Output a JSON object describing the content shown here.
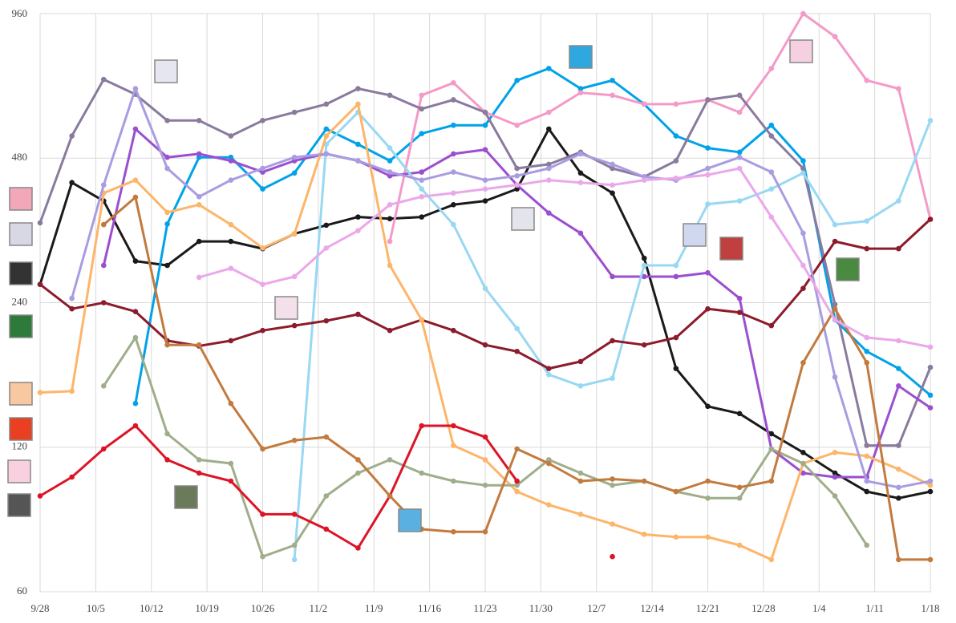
{
  "chart_data": {
    "type": "line",
    "yscale": "log",
    "grid": true,
    "xlim": [
      0,
      112
    ],
    "ylim": [
      60,
      960
    ],
    "xticks": [
      {
        "value": 0,
        "label": "9/28"
      },
      {
        "value": 7,
        "label": "10/5"
      },
      {
        "value": 14,
        "label": "10/12"
      },
      {
        "value": 21,
        "label": "10/19"
      },
      {
        "value": 28,
        "label": "10/26"
      },
      {
        "value": 35,
        "label": "11/2"
      },
      {
        "value": 42,
        "label": "11/9"
      },
      {
        "value": 49,
        "label": "11/16"
      },
      {
        "value": 56,
        "label": "11/23"
      },
      {
        "value": 63,
        "label": "11/30"
      },
      {
        "value": 70,
        "label": "12/7"
      },
      {
        "value": 77,
        "label": "12/14"
      },
      {
        "value": 84,
        "label": "12/21"
      },
      {
        "value": 91,
        "label": "12/28"
      },
      {
        "value": 98,
        "label": "1/4"
      },
      {
        "value": 105,
        "label": "1/11"
      },
      {
        "value": 112,
        "label": "1/18"
      }
    ],
    "yticks": [
      60,
      120,
      240,
      480,
      960
    ],
    "x": [
      0,
      4,
      8,
      12,
      16,
      20,
      24,
      28,
      32,
      36,
      40,
      44,
      48,
      52,
      56,
      60,
      64,
      68,
      72,
      76,
      80,
      84,
      88,
      92,
      96,
      100,
      104,
      108,
      112
    ],
    "series": [
      {
        "color": "#1a1a1a",
        "values": [
          262,
          427,
          391,
          293,
          287,
          322,
          322,
          311,
          334,
          348,
          362,
          359,
          362,
          384,
          391,
          414,
          552,
          447,
          406,
          297,
          175,
          146,
          141,
          128,
          117,
          106,
          97,
          94,
          97
        ]
      },
      {
        "color": "#00a2e8",
        "values": [
          null,
          null,
          null,
          148,
          350,
          482,
          482,
          414,
          447,
          552,
          513,
          474,
          540,
          562,
          562,
          697,
          738,
          670,
          697,
          622,
          534,
          504,
          494,
          562,
          474,
          221,
          190,
          175,
          154
        ]
      },
      {
        "color": "#f49ac8",
        "values": [
          null,
          null,
          null,
          null,
          null,
          null,
          null,
          null,
          null,
          null,
          null,
          322,
          649,
          689,
          598,
          562,
          598,
          657,
          649,
          622,
          622,
          635,
          598,
          738,
          960,
          860,
          697,
          670,
          358
        ]
      },
      {
        "color": "#8a7a9e",
        "values": [
          352,
          534,
          700,
          652,
          575,
          575,
          534,
          575,
          598,
          622,
          670,
          649,
          608,
          635,
          598,
          457,
          466,
          494,
          457,
          439,
          474,
          635,
          649,
          534,
          457,
          238,
          121,
          121,
          176
        ]
      },
      {
        "color": "#9b4fd0",
        "values": [
          null,
          null,
          287,
          552,
          482,
          490,
          474,
          449,
          474,
          490,
          474,
          441,
          449,
          490,
          500,
          422,
          369,
          335,
          272,
          272,
          272,
          277,
          245,
          119,
          106,
          104,
          104,
          161,
          145
        ]
      },
      {
        "color": "#99d8f2",
        "values": [
          null,
          null,
          null,
          null,
          null,
          null,
          null,
          null,
          70,
          513,
          598,
          504,
          414,
          349,
          257,
          212,
          170,
          161,
          167,
          287,
          287,
          385,
          391,
          414,
          447,
          349,
          355,
          391,
          575
        ]
      },
      {
        "color": "#8c1c2c",
        "values": [
          262,
          233,
          240,
          230,
          200,
          195,
          200,
          210,
          215,
          220,
          227,
          210,
          221,
          210,
          196,
          190,
          175,
          181,
          200,
          196,
          203,
          233,
          229,
          215,
          257,
          322,
          311,
          311,
          358
        ]
      },
      {
        "color": "#fdb56a",
        "values": [
          156,
          157,
          406,
          432,
          370,
          384,
          349,
          312,
          334,
          534,
          622,
          287,
          221,
          121,
          113,
          97,
          91,
          87,
          83,
          79,
          78,
          78,
          75,
          70,
          111,
          117,
          115,
          108,
          100
        ]
      },
      {
        "color": "#9fae8a",
        "values": [
          null,
          null,
          161,
          203,
          128,
          113,
          111,
          71,
          75,
          95,
          106,
          113,
          106,
          102,
          100,
          100,
          113,
          106,
          100,
          102,
          97,
          94,
          94,
          119,
          111,
          95,
          75,
          null,
          null
        ]
      },
      {
        "color": "#dc1426",
        "values": [
          95,
          104,
          119,
          133,
          113,
          106,
          102,
          87,
          87,
          81,
          74,
          95,
          133,
          133,
          126,
          102,
          null,
          null,
          71,
          null,
          null,
          null,
          null,
          null,
          null,
          null,
          null,
          null,
          null
        ]
      },
      {
        "color": "#a99ce0",
        "values": [
          null,
          245,
          422,
          670,
          457,
          399,
          432,
          457,
          482,
          490,
          474,
          449,
          432,
          449,
          432,
          441,
          457,
          490,
          466,
          439,
          432,
          457,
          482,
          449,
          335,
          168,
          102,
          99,
          102
        ]
      },
      {
        "color": "#c27a3e",
        "values": [
          null,
          null,
          349,
          398,
          196,
          196,
          148,
          119,
          124,
          126,
          113,
          95,
          81,
          80,
          80,
          119,
          111,
          102,
          103,
          102,
          97,
          102,
          99,
          102,
          180,
          233,
          180,
          70,
          70
        ]
      },
      {
        "color": "#eaa8ea",
        "values": [
          null,
          null,
          null,
          null,
          null,
          271,
          283,
          262,
          272,
          312,
          339,
          384,
          399,
          406,
          414,
          422,
          432,
          427,
          422,
          432,
          436,
          443,
          457,
          362,
          287,
          221,
          203,
          200,
          194
        ]
      }
    ]
  }
}
